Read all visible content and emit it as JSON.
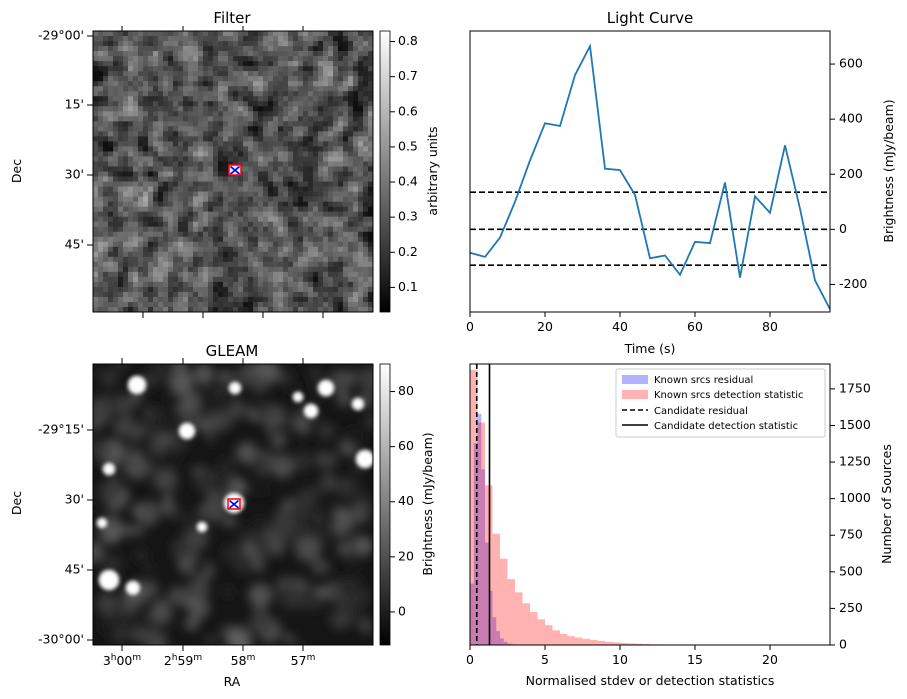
{
  "chart_data": [
    {
      "type": "heatmap",
      "title": "Filter",
      "ylabel": "Dec",
      "y_ticks": [
        "-29°00'",
        "15'",
        "30'",
        "45'"
      ],
      "colorbar_label": "arbitrary units",
      "colorbar_ticks": [
        "0.1",
        "0.2",
        "0.3",
        "0.4",
        "0.5",
        "0.6",
        "0.7",
        "0.8"
      ],
      "colorbar_range": [
        0.03,
        0.83
      ],
      "colormap": "gray",
      "marker": {
        "symbol": "x",
        "color": "#0000ff",
        "box_color": "#ff0000"
      }
    },
    {
      "type": "line",
      "title": "Light Curve",
      "xlabel": "Time (s)",
      "ylabel": "Brightness (mJy/beam)",
      "xlim": [
        0,
        96
      ],
      "ylim": [
        -300,
        720
      ],
      "x_ticks": [
        "0",
        "20",
        "40",
        "60",
        "80"
      ],
      "y_ticks": [
        "-200",
        "0",
        "200",
        "400",
        "600"
      ],
      "y_axis_side": "right",
      "color": "#1f77b4",
      "x": [
        0,
        4,
        8,
        12,
        16,
        20,
        24,
        28,
        32,
        36,
        40,
        44,
        48,
        52,
        56,
        60,
        64,
        68,
        72,
        76,
        80,
        84,
        88,
        92,
        96
      ],
      "y": [
        -85,
        -100,
        -30,
        100,
        250,
        385,
        375,
        560,
        665,
        220,
        215,
        125,
        -105,
        -95,
        -165,
        -45,
        -50,
        170,
        -175,
        120,
        60,
        305,
        75,
        -185,
        -290
      ],
      "hlines": [
        135,
        0,
        -130
      ],
      "hline_style": "dashed"
    },
    {
      "type": "heatmap",
      "title": "GLEAM",
      "xlabel": "RA",
      "ylabel": "Dec",
      "x_ticks": [
        "3h00m",
        "2h59m",
        "58m",
        "57m"
      ],
      "y_ticks": [
        "-29°15'",
        "30'",
        "45'",
        "-30°00'"
      ],
      "colorbar_label": "Brightness (mJy/beam)",
      "colorbar_ticks": [
        "0",
        "20",
        "40",
        "60",
        "80"
      ],
      "colorbar_range": [
        -12,
        90
      ],
      "colormap": "gray",
      "marker": {
        "symbol": "x",
        "color": "#0000ff",
        "box_color": "#ff0000"
      }
    },
    {
      "type": "bar",
      "xlabel": "Normalised stdev or detection statistics",
      "ylabel": "Number of Sources",
      "xlim": [
        0,
        24
      ],
      "ylim": [
        0,
        1920
      ],
      "x_ticks": [
        "0",
        "5",
        "10",
        "15",
        "20"
      ],
      "y_ticks": [
        "0",
        "250",
        "500",
        "750",
        "1000",
        "1250",
        "1500",
        "1750"
      ],
      "y_axis_side": "right",
      "legend_position": "upper right",
      "series": [
        {
          "name": "Known srcs residual",
          "color": "#0000ff",
          "bin_width": 0.25,
          "bin_start": 0,
          "values": [
            420,
            1380,
            1580,
            1200,
            700,
            370,
            190,
            95,
            45,
            22,
            10,
            5
          ]
        },
        {
          "name": "Known srcs detection statistic",
          "color": "#ff0000",
          "bin_width": 0.5,
          "bin_start": 0,
          "values": [
            1880,
            1520,
            1090,
            760,
            590,
            450,
            360,
            285,
            225,
            175,
            135,
            100,
            75,
            60,
            50,
            42,
            35,
            28,
            22,
            18,
            14,
            11,
            9,
            7,
            5,
            4,
            3,
            3,
            2,
            2,
            1,
            1,
            1,
            1,
            1,
            1,
            1,
            1,
            1,
            1,
            1,
            1,
            1,
            1,
            1,
            1
          ]
        }
      ],
      "vlines": [
        {
          "name": "Candidate residual",
          "x": 0.45,
          "style": "dashed",
          "color": "#000000"
        },
        {
          "name": "Candidate detection statistic",
          "x": 1.3,
          "style": "solid",
          "color": "#000000"
        }
      ]
    }
  ]
}
